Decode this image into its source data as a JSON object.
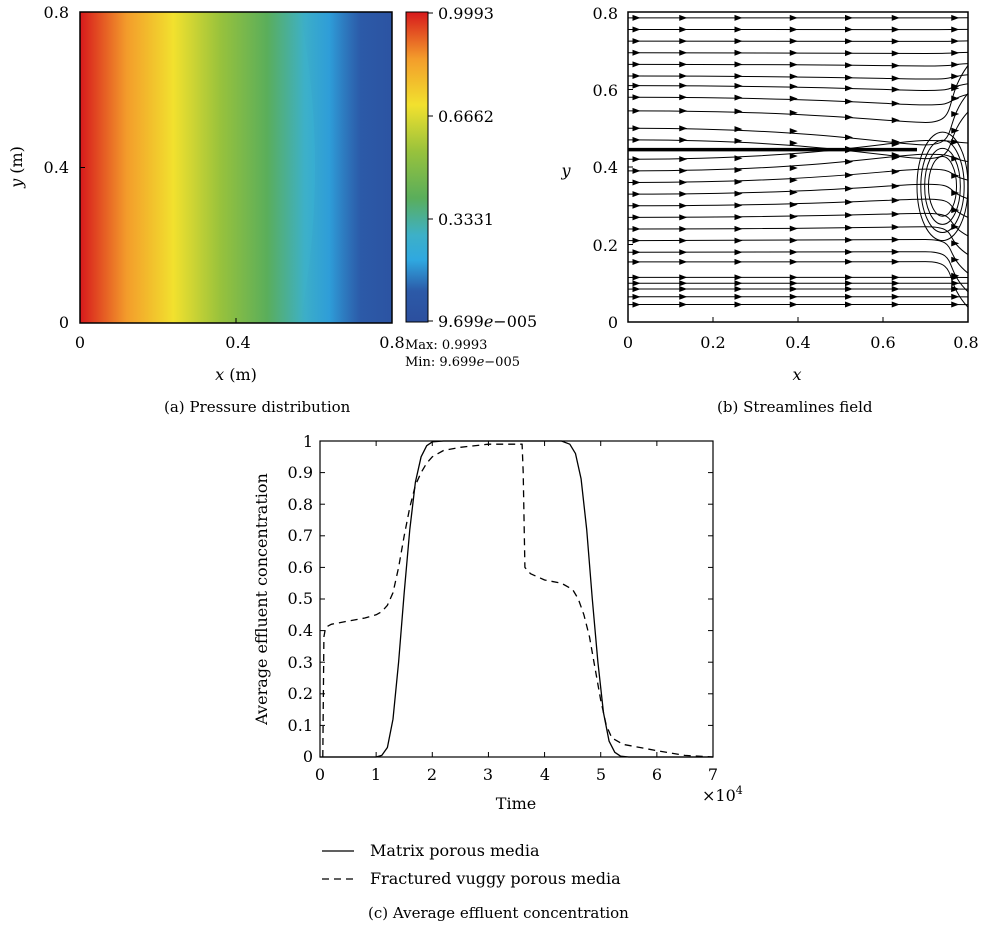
{
  "chart_data": [
    {
      "type": "heatmap",
      "panel_label": "(a)",
      "caption": "Pressure distribution",
      "xlabel_var": "x",
      "xlabel_unit": "(m)",
      "ylabel_var": "y",
      "ylabel_unit": "(m)",
      "xlim": [
        0,
        0.8
      ],
      "ylim": [
        0,
        0.8
      ],
      "x_ticks": [
        "0",
        "0.4",
        "0.8"
      ],
      "y_ticks": [
        "0",
        "0.4",
        "0.8"
      ],
      "colorbar_ticks": [
        "0.9993",
        "0.6662",
        "0.3331"
      ],
      "colorbar_min_mantissa": "9.699",
      "colorbar_min_exp": "e",
      "colorbar_min_rest": "−005",
      "max_label": "Max: 0.9993",
      "min_label_prefix": "Min: 9.699",
      "min_label_exp": "e",
      "min_label_rest": "−005",
      "value_range": [
        9.699e-05,
        0.9993
      ],
      "colormap": [
        "#d7191c",
        "#f39c2b",
        "#f2e12e",
        "#7dbb3a",
        "#5aae5b",
        "#2fa8e0",
        "#2c5aa8"
      ]
    },
    {
      "type": "streamlines",
      "panel_label": "(b)",
      "caption": "Streamlines field",
      "xlabel": "x",
      "ylabel": "y",
      "xlim": [
        0,
        0.8
      ],
      "ylim": [
        0,
        0.8
      ],
      "x_ticks": [
        "0",
        "0.2",
        "0.4",
        "0.6",
        "0.8"
      ],
      "y_ticks": [
        "0",
        "0.2",
        "0.4",
        "0.6",
        "0.8"
      ],
      "fracture": {
        "y": 0.445,
        "x_start": 0,
        "x_end": 0.68
      },
      "vug": {
        "x_center": 0.74,
        "y_center": 0.35,
        "rx": 0.06,
        "ry": 0.14
      },
      "streamline_y_starts": [
        0.785,
        0.755,
        0.725,
        0.695,
        0.665,
        0.635,
        0.61,
        0.58,
        0.545,
        0.5,
        0.47,
        0.42,
        0.39,
        0.36,
        0.33,
        0.3,
        0.27,
        0.24,
        0.21,
        0.18,
        0.155,
        0.115,
        0.1,
        0.085,
        0.065,
        0.045
      ]
    },
    {
      "type": "line",
      "panel_label": "(c)",
      "caption": "Average effluent concentration",
      "xlabel": "Time",
      "ylabel": "Average effluent concentration",
      "x_multiplier_base": "×10",
      "x_multiplier_exp": "4",
      "xlim": [
        0,
        7
      ],
      "ylim": [
        0,
        1
      ],
      "x_ticks": [
        "0",
        "1",
        "2",
        "3",
        "4",
        "5",
        "6",
        "7"
      ],
      "y_ticks": [
        "0",
        "0.1",
        "0.2",
        "0.3",
        "0.4",
        "0.5",
        "0.6",
        "0.7",
        "0.8",
        "0.9",
        "1"
      ],
      "series": [
        {
          "name": "Matrix porous media",
          "style": "solid",
          "x": [
            0,
            1.0,
            1.1,
            1.2,
            1.3,
            1.4,
            1.5,
            1.6,
            1.7,
            1.8,
            1.9,
            2.0,
            2.2,
            2.5,
            3.0,
            3.5,
            4.0,
            4.3,
            4.45,
            4.55,
            4.65,
            4.75,
            4.85,
            4.95,
            5.05,
            5.15,
            5.25,
            5.35,
            5.5,
            6.0,
            7.0
          ],
          "values": [
            0,
            0,
            0.005,
            0.03,
            0.12,
            0.3,
            0.52,
            0.72,
            0.87,
            0.95,
            0.985,
            0.997,
            1.0,
            1.0,
            1.0,
            1.0,
            1.0,
            1.0,
            0.99,
            0.96,
            0.88,
            0.72,
            0.5,
            0.3,
            0.14,
            0.05,
            0.015,
            0.003,
            0,
            0,
            0
          ]
        },
        {
          "name": "Fractured vuggy porous media",
          "style": "dashed",
          "x": [
            0.05,
            0.07,
            0.1,
            0.2,
            0.5,
            0.8,
            1.0,
            1.1,
            1.2,
            1.3,
            1.4,
            1.5,
            1.6,
            1.7,
            1.8,
            1.9,
            2.0,
            2.2,
            2.5,
            3.0,
            3.4,
            3.58,
            3.6,
            3.62,
            3.65,
            3.75,
            4.0,
            4.3,
            4.5,
            4.6,
            4.7,
            4.8,
            4.9,
            5.0,
            5.1,
            5.2,
            5.4,
            5.7,
            6.0,
            6.5,
            7.0
          ],
          "values": [
            0,
            0.38,
            0.41,
            0.42,
            0.43,
            0.44,
            0.45,
            0.46,
            0.48,
            0.52,
            0.6,
            0.7,
            0.79,
            0.86,
            0.9,
            0.93,
            0.95,
            0.97,
            0.98,
            0.99,
            0.99,
            0.99,
            0.99,
            0.9,
            0.6,
            0.58,
            0.56,
            0.55,
            0.53,
            0.5,
            0.45,
            0.38,
            0.28,
            0.18,
            0.1,
            0.06,
            0.04,
            0.03,
            0.02,
            0.005,
            0
          ]
        }
      ]
    }
  ]
}
